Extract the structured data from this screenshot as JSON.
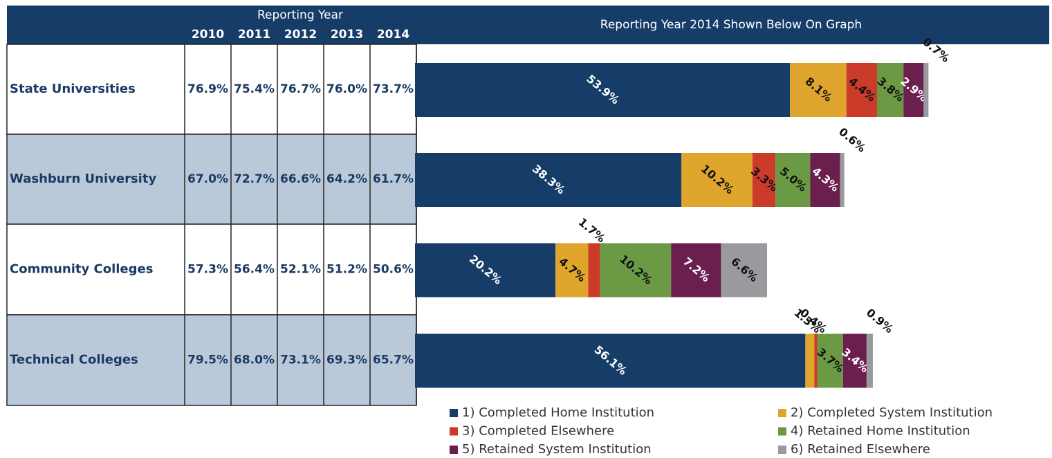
{
  "table": {
    "group_header": "Reporting Year",
    "columns": [
      "2010",
      "2011",
      "2012",
      "2013",
      "2014"
    ],
    "rows": [
      [
        "76.9%",
        "75.4%",
        "76.7%",
        "76.0%",
        "73.7%"
      ],
      [
        "67.0%",
        "72.7%",
        "66.6%",
        "64.2%",
        "61.7%"
      ],
      [
        "57.3%",
        "56.4%",
        "52.1%",
        "51.2%",
        "50.6%"
      ],
      [
        "79.5%",
        "68.0%",
        "73.1%",
        "69.3%",
        "65.7%"
      ]
    ]
  },
  "chart_data": {
    "type": "stacked-bar",
    "orientation": "horizontal",
    "title": "Reporting Year 2014 Shown Below On Graph",
    "categories": [
      "State Universities",
      "Washburn University",
      "Community Colleges",
      "Technical Colleges"
    ],
    "series": [
      {
        "name": "1) Completed Home Institution",
        "color": "#163d68",
        "values": [
          53.9,
          38.3,
          20.2,
          56.1
        ],
        "value_labels": [
          "53.9%",
          "38.3%",
          "20.2%",
          "56.1%"
        ]
      },
      {
        "name": "2) Completed System Institution",
        "color": "#e0a52d",
        "values": [
          8.1,
          10.2,
          4.7,
          1.3
        ],
        "value_labels": [
          "8.1%",
          "10.2%",
          "4.7%",
          "1.3%"
        ]
      },
      {
        "name": "3) Completed Elsewhere",
        "color": "#cc3a2a",
        "values": [
          4.4,
          3.3,
          1.7,
          0.4
        ],
        "value_labels": [
          "4.4%",
          "3.3%",
          "1.7%",
          "0.4%"
        ]
      },
      {
        "name": "4) Retained Home Institution",
        "color": "#6c9a44",
        "values": [
          3.8,
          5.0,
          10.2,
          3.7
        ],
        "value_labels": [
          "3.8%",
          "5.0%",
          "10.2%",
          "3.7%"
        ]
      },
      {
        "name": "5) Retained System Institution",
        "color": "#6a1f4f",
        "values": [
          2.9,
          4.3,
          7.2,
          3.4
        ],
        "value_labels": [
          "2.9%",
          "4.3%",
          "7.2%",
          "3.4%"
        ]
      },
      {
        "name": "6) Retained Elsewhere",
        "color": "#9a9a9e",
        "values": [
          0.7,
          0.6,
          6.6,
          0.9
        ],
        "value_labels": [
          "0.7%",
          "0.6%",
          "6.6%",
          "0.9%"
        ]
      }
    ]
  }
}
